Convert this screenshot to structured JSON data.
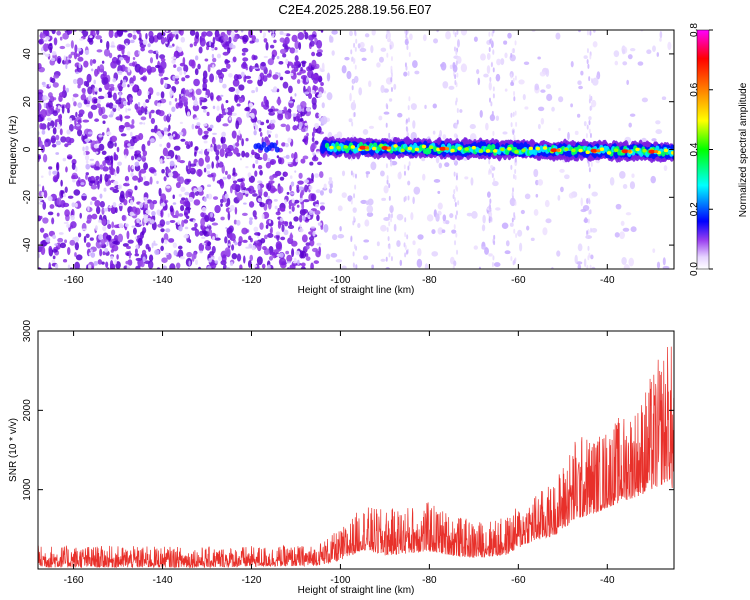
{
  "figure": {
    "title": "C2E4.2025.288.19.56.E07"
  },
  "chart_data": [
    {
      "type": "heatmap",
      "xlabel": "Height of straight line (km)",
      "ylabel": "Frequency (Hz)",
      "xlim": [
        -168,
        -25
      ],
      "ylim": [
        -50,
        50
      ],
      "xticks": [
        -160,
        -140,
        -120,
        -100,
        -80,
        -60,
        -40
      ],
      "yticks": [
        -40,
        -20,
        0,
        20,
        40
      ],
      "colorbar": {
        "label": "Normalized spectral amplitude",
        "range": [
          0,
          0.8
        ],
        "ticks": [
          0.0,
          0.2,
          0.4,
          0.6,
          0.8
        ],
        "colors": [
          "#ffffff",
          "#e6d4ff",
          "#8a2be2",
          "#0000ff",
          "#00ffff",
          "#00ff00",
          "#ffff00",
          "#ff8000",
          "#ff0000",
          "#ff00ff"
        ]
      },
      "signal_band": {
        "x_range": [
          -104,
          -25
        ],
        "center_freq_start": 1,
        "center_freq_end": -1,
        "peak_amplitude": 0.8
      },
      "noise_regions": [
        {
          "x_range": [
            -168,
            -104
          ],
          "level": "dense"
        },
        {
          "x_range": [
            -104,
            -60
          ],
          "level": "sparse"
        },
        {
          "x_range": [
            -60,
            -25
          ],
          "level": "very sparse"
        }
      ]
    },
    {
      "type": "line",
      "xlabel": "Height of straight line (km)",
      "ylabel": "SNR (10 * v/v)",
      "xlim": [
        -168,
        -25
      ],
      "ylim": [
        0,
        3000
      ],
      "xticks": [
        -160,
        -140,
        -120,
        -100,
        -80,
        -60,
        -40
      ],
      "yticks": [
        1000,
        2000,
        3000
      ],
      "line_color": "#e8302a",
      "envelope": [
        {
          "x": -168,
          "base": 200,
          "amp": 300
        },
        {
          "x": -130,
          "base": 200,
          "amp": 280
        },
        {
          "x": -106,
          "base": 220,
          "amp": 300
        },
        {
          "x": -100,
          "base": 280,
          "amp": 500
        },
        {
          "x": -95,
          "base": 420,
          "amp": 800
        },
        {
          "x": -90,
          "base": 350,
          "amp": 750
        },
        {
          "x": -80,
          "base": 400,
          "amp": 850
        },
        {
          "x": -75,
          "base": 350,
          "amp": 700
        },
        {
          "x": -70,
          "base": 320,
          "amp": 600
        },
        {
          "x": -63,
          "base": 350,
          "amp": 650
        },
        {
          "x": -58,
          "base": 500,
          "amp": 900
        },
        {
          "x": -52,
          "base": 600,
          "amp": 1100
        },
        {
          "x": -47,
          "base": 800,
          "amp": 1700
        },
        {
          "x": -42,
          "base": 900,
          "amp": 1700
        },
        {
          "x": -38,
          "base": 1000,
          "amp": 1900
        },
        {
          "x": -33,
          "base": 1100,
          "amp": 2100
        },
        {
          "x": -29,
          "base": 1200,
          "amp": 2600
        },
        {
          "x": -26,
          "base": 1300,
          "amp": 2950
        },
        {
          "x": -25,
          "base": 1100,
          "amp": 2700
        }
      ]
    }
  ]
}
